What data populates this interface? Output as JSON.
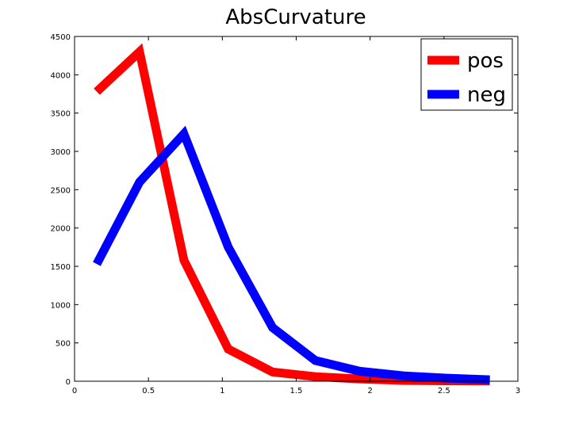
{
  "chart_data": {
    "type": "line",
    "title": "AbsCurvature",
    "xlabel": "",
    "ylabel": "",
    "xlim": [
      0,
      3
    ],
    "ylim": [
      0,
      4500
    ],
    "xticks": [
      0,
      0.5,
      1,
      1.5,
      2,
      2.5,
      3
    ],
    "xtick_labels": [
      "0",
      "0.5",
      "1",
      "1.5",
      "2",
      "2.5",
      "3"
    ],
    "yticks": [
      0,
      500,
      1000,
      1500,
      2000,
      2500,
      3000,
      3500,
      4000,
      4500
    ],
    "ytick_labels": [
      "0",
      "500",
      "1000",
      "1500",
      "2000",
      "2500",
      "3000",
      "3500",
      "4000",
      "4500"
    ],
    "grid": false,
    "legend_position": "top-right",
    "series": [
      {
        "name": "pos",
        "color": "#ff0000",
        "x": [
          0.15,
          0.44,
          0.74,
          1.04,
          1.34,
          1.63,
          1.93,
          2.23,
          2.52,
          2.81
        ],
        "y": [
          3780,
          4300,
          1580,
          420,
          120,
          60,
          30,
          10,
          5,
          2
        ]
      },
      {
        "name": "neg",
        "color": "#0000ff",
        "x": [
          0.15,
          0.44,
          0.74,
          1.04,
          1.34,
          1.63,
          1.93,
          2.23,
          2.52,
          2.81
        ],
        "y": [
          1530,
          2600,
          3230,
          1750,
          700,
          270,
          130,
          70,
          40,
          20
        ]
      }
    ]
  }
}
